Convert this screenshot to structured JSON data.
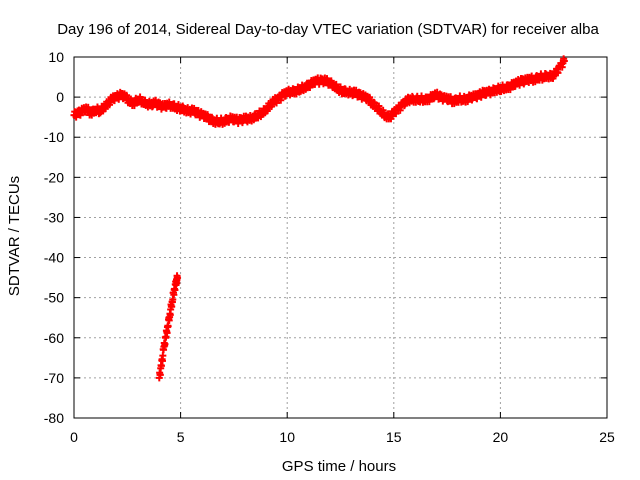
{
  "chart_data": {
    "type": "scatter",
    "title": "Day 196 of 2014, Sidereal Day-to-day VTEC variation (SDTVAR) for receiver alba",
    "xlabel": "GPS time / hours",
    "ylabel": "SDTVAR / TECUs",
    "xlim": [
      0,
      25
    ],
    "ylim": [
      -80,
      10
    ],
    "xticks": [
      "0",
      "5",
      "10",
      "15",
      "20",
      "25"
    ],
    "yticks": [
      "10",
      "0",
      "-10",
      "-20",
      "-30",
      "-40",
      "-50",
      "-60",
      "-70",
      "-80"
    ],
    "grid": true,
    "marker": "plus",
    "series": [
      {
        "name": "main trace (x hours, y TECU)",
        "color": "#ff0000",
        "points": [
          [
            0.0,
            -4.5
          ],
          [
            0.2,
            -4.0
          ],
          [
            0.4,
            -3.5
          ],
          [
            0.6,
            -3.0
          ],
          [
            0.8,
            -4.0
          ],
          [
            1.0,
            -3.0
          ],
          [
            1.2,
            -3.5
          ],
          [
            1.4,
            -2.5
          ],
          [
            1.6,
            -1.5
          ],
          [
            1.8,
            -0.5
          ],
          [
            2.0,
            0.0
          ],
          [
            2.2,
            0.5
          ],
          [
            2.4,
            0.0
          ],
          [
            2.6,
            -1.0
          ],
          [
            2.8,
            -1.5
          ],
          [
            3.0,
            -0.5
          ],
          [
            3.2,
            -1.0
          ],
          [
            3.4,
            -1.5
          ],
          [
            3.6,
            -2.0
          ],
          [
            3.8,
            -1.5
          ],
          [
            4.0,
            -2.0
          ],
          [
            4.2,
            -2.5
          ],
          [
            4.4,
            -2.0
          ],
          [
            4.6,
            -2.0
          ],
          [
            4.8,
            -2.5
          ],
          [
            5.0,
            -2.8
          ],
          [
            5.2,
            -3.0
          ],
          [
            5.4,
            -3.5
          ],
          [
            5.6,
            -3.5
          ],
          [
            5.8,
            -4.0
          ],
          [
            6.0,
            -4.5
          ],
          [
            6.2,
            -5.0
          ],
          [
            6.4,
            -5.5
          ],
          [
            6.6,
            -6.0
          ],
          [
            6.8,
            -6.0
          ],
          [
            7.0,
            -6.0
          ],
          [
            7.2,
            -5.5
          ],
          [
            7.4,
            -5.5
          ],
          [
            7.6,
            -5.8
          ],
          [
            7.8,
            -5.8
          ],
          [
            8.0,
            -5.5
          ],
          [
            8.2,
            -5.5
          ],
          [
            8.4,
            -5.0
          ],
          [
            8.6,
            -4.5
          ],
          [
            8.8,
            -4.0
          ],
          [
            9.0,
            -3.0
          ],
          [
            9.2,
            -2.0
          ],
          [
            9.4,
            -1.0
          ],
          [
            9.6,
            -0.5
          ],
          [
            9.8,
            0.5
          ],
          [
            10.0,
            1.0
          ],
          [
            10.2,
            1.5
          ],
          [
            10.4,
            1.5
          ],
          [
            10.6,
            2.0
          ],
          [
            10.8,
            2.5
          ],
          [
            11.0,
            3.0
          ],
          [
            11.2,
            3.5
          ],
          [
            11.4,
            4.0
          ],
          [
            11.6,
            4.0
          ],
          [
            11.8,
            4.0
          ],
          [
            12.0,
            3.5
          ],
          [
            12.2,
            3.0
          ],
          [
            12.4,
            2.0
          ],
          [
            12.6,
            1.5
          ],
          [
            12.8,
            1.5
          ],
          [
            13.0,
            1.0
          ],
          [
            13.2,
            1.0
          ],
          [
            13.4,
            0.5
          ],
          [
            13.6,
            0.0
          ],
          [
            13.8,
            -0.5
          ],
          [
            14.0,
            -1.5
          ],
          [
            14.2,
            -2.5
          ],
          [
            14.4,
            -3.5
          ],
          [
            14.6,
            -4.5
          ],
          [
            14.8,
            -5.0
          ],
          [
            15.0,
            -4.0
          ],
          [
            15.2,
            -3.0
          ],
          [
            15.4,
            -2.0
          ],
          [
            15.6,
            -1.0
          ],
          [
            15.8,
            -0.5
          ],
          [
            16.0,
            -0.5
          ],
          [
            16.2,
            -0.5
          ],
          [
            16.4,
            -0.5
          ],
          [
            16.6,
            -0.5
          ],
          [
            16.8,
            0.0
          ],
          [
            17.0,
            0.5
          ],
          [
            17.2,
            0.0
          ],
          [
            17.4,
            -0.5
          ],
          [
            17.6,
            -0.5
          ],
          [
            17.8,
            -1.0
          ],
          [
            18.0,
            -0.5
          ],
          [
            18.2,
            -0.5
          ],
          [
            18.4,
            -0.5
          ],
          [
            18.6,
            0.0
          ],
          [
            18.8,
            0.0
          ],
          [
            19.0,
            0.5
          ],
          [
            19.2,
            1.0
          ],
          [
            19.4,
            1.0
          ],
          [
            19.6,
            1.5
          ],
          [
            19.8,
            2.0
          ],
          [
            20.0,
            2.0
          ],
          [
            20.2,
            2.5
          ],
          [
            20.4,
            2.5
          ],
          [
            20.6,
            3.0
          ],
          [
            20.8,
            3.5
          ],
          [
            21.0,
            4.0
          ],
          [
            21.2,
            4.0
          ],
          [
            21.4,
            4.5
          ],
          [
            21.6,
            4.5
          ],
          [
            21.8,
            5.0
          ],
          [
            22.0,
            5.0
          ],
          [
            22.2,
            5.5
          ],
          [
            22.4,
            5.0
          ],
          [
            22.6,
            6.0
          ],
          [
            22.8,
            7.5
          ],
          [
            23.0,
            9.0
          ]
        ]
      },
      {
        "name": "descending segment (x hours, y TECU)",
        "color": "#ff0000",
        "points": [
          [
            4.0,
            -70.0
          ],
          [
            4.1,
            -67.0
          ],
          [
            4.2,
            -63.0
          ],
          [
            4.3,
            -60.0
          ],
          [
            4.4,
            -57.0
          ],
          [
            4.5,
            -54.0
          ],
          [
            4.6,
            -51.0
          ],
          [
            4.7,
            -48.0
          ],
          [
            4.8,
            -46.0
          ],
          [
            4.85,
            -45.0
          ]
        ]
      }
    ]
  }
}
